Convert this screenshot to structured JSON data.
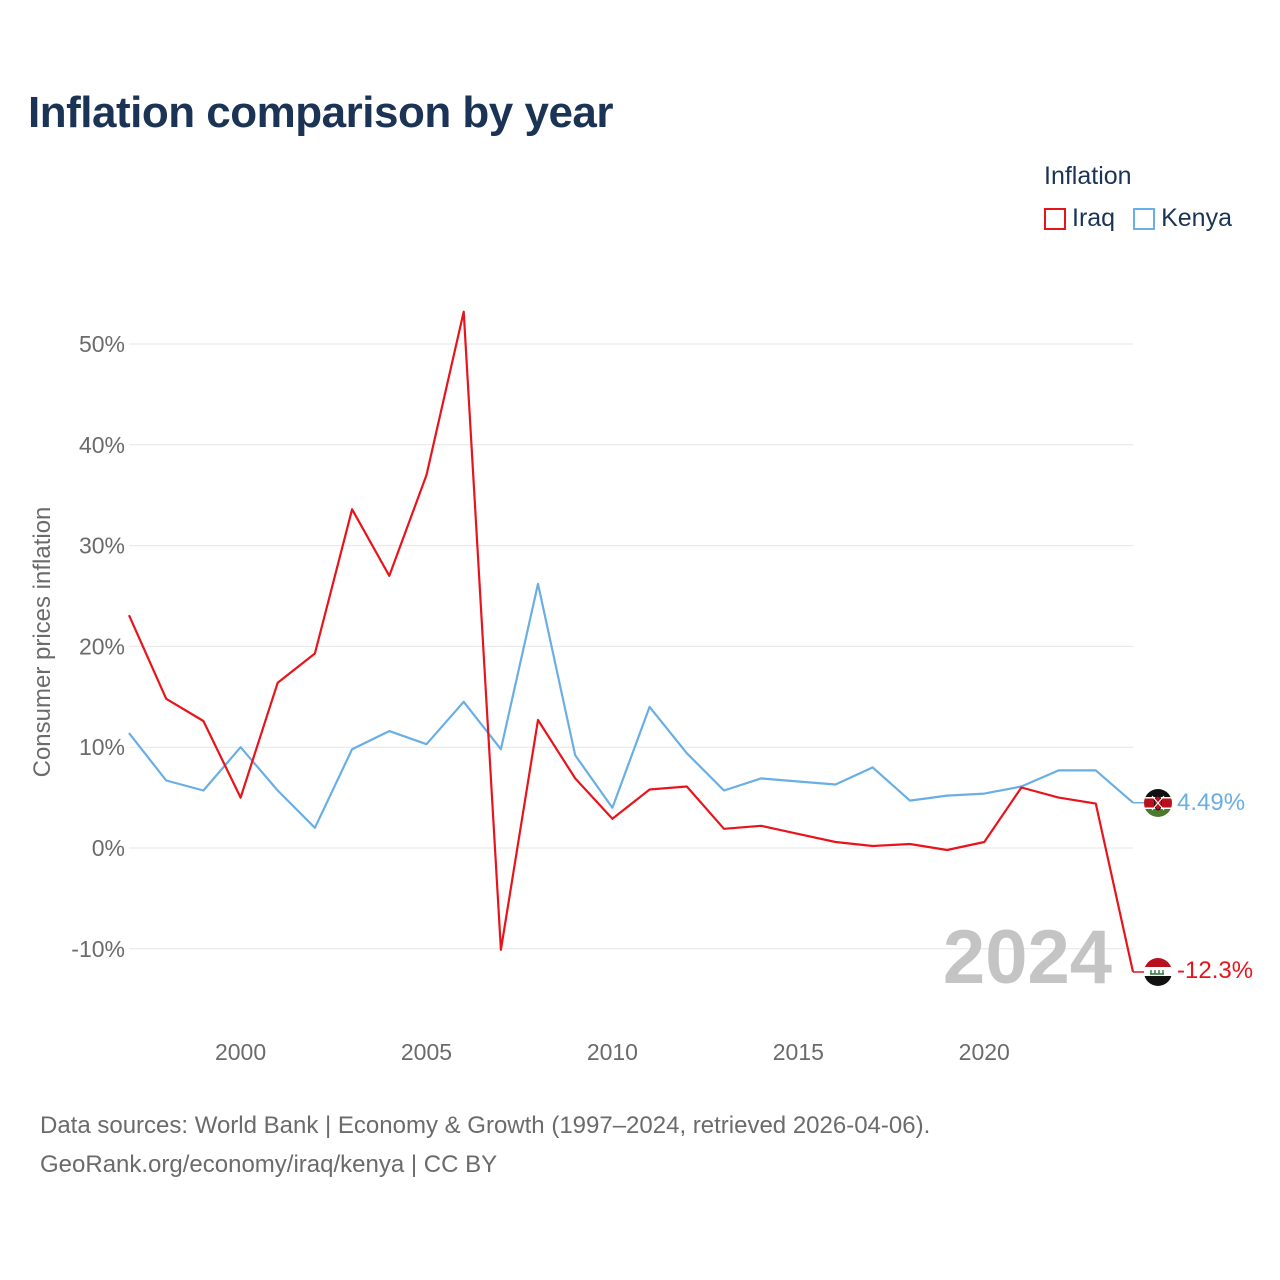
{
  "chart_data": {
    "type": "line",
    "title": "Inflation comparison by year",
    "ylabel": "Consumer prices inflation",
    "xlabel": "",
    "xlim": [
      1997,
      2024
    ],
    "ylim": [
      -17,
      54
    ],
    "yticks": [
      -10,
      0,
      10,
      20,
      30,
      40,
      50
    ],
    "ytick_labels": [
      "-10%",
      "0%",
      "10%",
      "20%",
      "30%",
      "40%",
      "50%"
    ],
    "xticks": [
      2000,
      2005,
      2010,
      2015,
      2020
    ],
    "xtick_labels": [
      "2000",
      "2005",
      "2010",
      "2015",
      "2020"
    ],
    "legend_title": "Inflation",
    "legend_position": "top-right",
    "year_watermark": "2024",
    "x": [
      1997,
      1998,
      1999,
      2000,
      2001,
      2002,
      2003,
      2004,
      2005,
      2006,
      2007,
      2008,
      2009,
      2010,
      2011,
      2012,
      2013,
      2014,
      2015,
      2016,
      2017,
      2018,
      2019,
      2020,
      2021,
      2022,
      2023,
      2024
    ],
    "series": [
      {
        "name": "Iraq",
        "color": "#e8141c",
        "end_label": "-12.3%",
        "flag": "iraq-flag",
        "values": [
          23.1,
          14.8,
          12.6,
          5.0,
          16.4,
          19.3,
          33.6,
          27.0,
          37.0,
          53.2,
          -10.1,
          12.7,
          6.9,
          2.9,
          5.8,
          6.1,
          1.9,
          2.2,
          1.4,
          0.6,
          0.2,
          0.4,
          -0.2,
          0.6,
          6.0,
          5.0,
          4.4,
          -12.3
        ]
      },
      {
        "name": "Kenya",
        "color": "#6aaee6",
        "end_label": "4.49%",
        "flag": "kenya-flag",
        "values": [
          11.4,
          6.7,
          5.7,
          10.0,
          5.7,
          2.0,
          9.8,
          11.6,
          10.3,
          14.5,
          9.8,
          26.2,
          9.2,
          4.0,
          14.0,
          9.4,
          5.7,
          6.9,
          6.6,
          6.3,
          8.0,
          4.7,
          5.2,
          5.4,
          6.1,
          7.7,
          7.7,
          4.49
        ]
      }
    ]
  },
  "source_line_1": "Data sources: World Bank | Economy & Growth (1997–2024, retrieved 2026-04-06).",
  "source_line_2": "GeoRank.org/economy/iraq/kenya | CC BY"
}
